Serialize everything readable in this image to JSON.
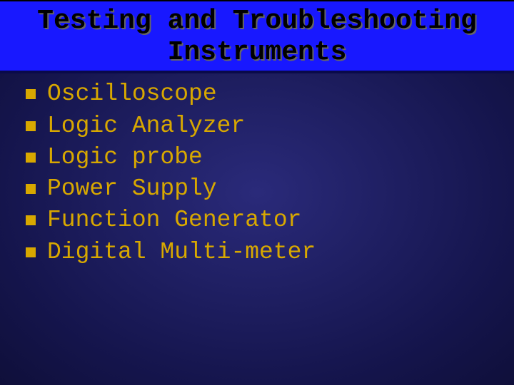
{
  "slide": {
    "title_line1": "Testing and Troubleshooting",
    "title_line2": "Instruments",
    "items": [
      "Oscilloscope",
      "Logic Analyzer",
      "Logic probe",
      "Power Supply",
      "Function Generator",
      "Digital Multi-meter"
    ],
    "colors": {
      "title_bg": "#1818ff",
      "title_text": "#000000",
      "title_shadow": "#666666",
      "slide_bg_center": "#2a2a7a",
      "slide_bg_edge": "#15154d",
      "bullet_color": "#d8a800",
      "body_text": "#d8a800"
    },
    "typography": {
      "title_font": "Courier New",
      "title_size_pt": 38,
      "title_weight": "bold",
      "body_font": "Courier New",
      "body_size_pt": 33,
      "body_weight": "normal"
    }
  }
}
